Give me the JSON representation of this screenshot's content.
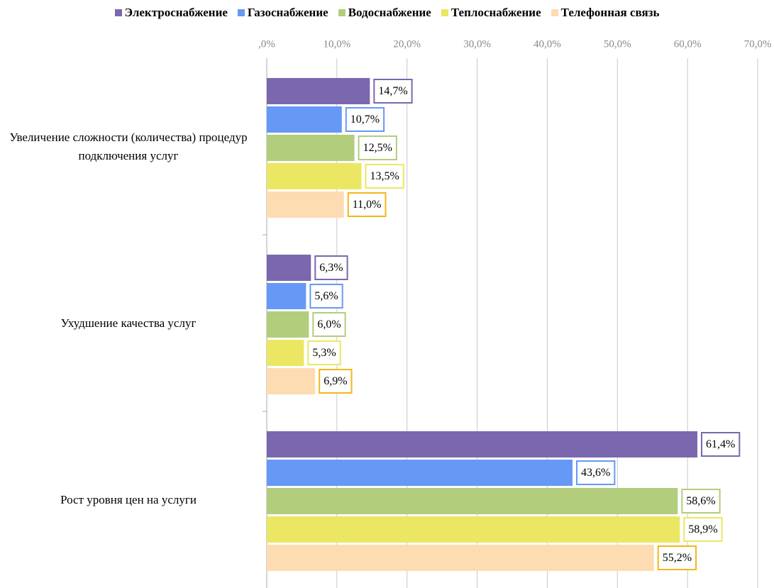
{
  "chart_data": {
    "type": "hbar",
    "categories": [
      "Увеличение сложности (количества) процедур подключения услуг",
      "Ухудшение качества услуг",
      "Рост уровня цен на услуги"
    ],
    "series": [
      {
        "name": "Электроснабжение",
        "color": "#7b67ad",
        "label_color": "#7b67ad",
        "values": [
          14.7,
          6.3,
          61.4
        ],
        "value_labels": [
          "14,7%",
          "6,3%",
          "61,4%"
        ]
      },
      {
        "name": "Газоснабжение",
        "color": "#6699f5",
        "label_color": "#6699f5",
        "values": [
          10.7,
          5.6,
          43.6
        ],
        "value_labels": [
          "10,7%",
          "5,6%",
          "43,6%"
        ]
      },
      {
        "name": "Водоснабжение",
        "color": "#b2cd7c",
        "label_color": "#b2cd7c",
        "values": [
          12.5,
          6.0,
          58.6
        ],
        "value_labels": [
          "12,5%",
          "6,0%",
          "58,6%"
        ]
      },
      {
        "name": "Теплоснабжение",
        "color": "#ebe763",
        "label_color": "#ebe763",
        "values": [
          13.5,
          5.3,
          58.9
        ],
        "value_labels": [
          "13,5%",
          "5,3%",
          "58,9%"
        ]
      },
      {
        "name": "Телефонная связь",
        "color": "#fddcb2",
        "label_color": "#f2b619",
        "values": [
          11.0,
          6.9,
          55.2
        ],
        "value_labels": [
          "11,0%",
          "6,9%",
          "55,2%"
        ]
      }
    ],
    "xlim": [
      0,
      70
    ],
    "xticks": [
      {
        "value": 0,
        "label": ",0%"
      },
      {
        "value": 10,
        "label": "10,0%"
      },
      {
        "value": 20,
        "label": "20,0%"
      },
      {
        "value": 30,
        "label": "30,0%"
      },
      {
        "value": 40,
        "label": "40,0%"
      },
      {
        "value": 50,
        "label": "50,0%"
      },
      {
        "value": 60,
        "label": "60,0%"
      },
      {
        "value": 70,
        "label": "70,0%"
      }
    ],
    "grid": true,
    "legend": "top"
  }
}
